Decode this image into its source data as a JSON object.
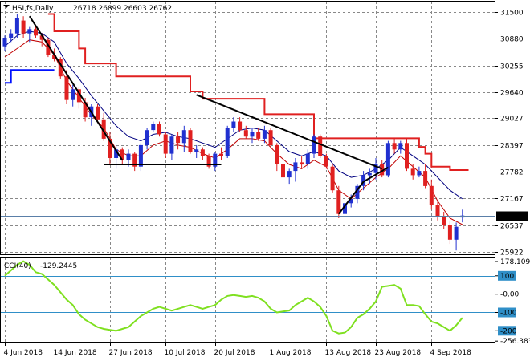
{
  "header": {
    "symbol": "HSI,fs,Daily",
    "ohlc": "26718 26899 26603 26762"
  },
  "cci_header": {
    "label": "CCI(40)",
    "value": "-129.2445"
  },
  "current_price_label": "26762",
  "colors": {
    "bull": "#2030d0",
    "bear": "#e02020",
    "upper_band": "#e02020",
    "lower_band": "#0010ff",
    "ma_fast": "#c00000",
    "ma_slow": "#000080",
    "cci": "#7fe020",
    "level_line": "#2f8fc8",
    "trendline": "#000000"
  },
  "chart_data": [
    {
      "type": "candlestick",
      "title": "HSI,fs,Daily",
      "ylim": [
        25860,
        31740
      ],
      "y_ticks": [
        "31500",
        "30880",
        "30255",
        "29640",
        "29027",
        "28397",
        "27782",
        "27167",
        "26537",
        "25922"
      ],
      "x_labels": [
        "4 Jun 2018",
        "14 Jun 2018",
        "27 Jun 2018",
        "10 Jul 2018",
        "20 Jul 2018",
        "1 Aug 2018",
        "13 Aug 2018",
        "23 Aug 2018",
        "4 Sep 2018"
      ],
      "x_label_index": [
        0,
        8,
        17,
        26,
        34,
        43,
        52,
        60,
        69
      ],
      "candles": [
        [
          30700,
          30950,
          30600,
          30900
        ],
        [
          30900,
          31100,
          30800,
          31000
        ],
        [
          31000,
          31450,
          30900,
          31350
        ],
        [
          31300,
          31400,
          30900,
          31000
        ],
        [
          31000,
          31150,
          30800,
          31100
        ],
        [
          31100,
          31200,
          30900,
          30950
        ],
        [
          30950,
          31000,
          30700,
          30850
        ],
        [
          30850,
          30900,
          30450,
          30500
        ],
        [
          30500,
          30650,
          30350,
          30400
        ],
        [
          30400,
          30450,
          29950,
          30000
        ],
        [
          30000,
          30150,
          29350,
          29450
        ],
        [
          29450,
          29800,
          29300,
          29700
        ],
        [
          29700,
          29750,
          29250,
          29400
        ],
        [
          29400,
          29500,
          28950,
          29050
        ],
        [
          29050,
          29350,
          28850,
          29300
        ],
        [
          29300,
          29350,
          28950,
          29000
        ],
        [
          29000,
          29150,
          28500,
          28550
        ],
        [
          28550,
          28700,
          27950,
          28100
        ],
        [
          28100,
          28400,
          27850,
          28300
        ],
        [
          28300,
          28350,
          27950,
          28050
        ],
        [
          28050,
          28300,
          27900,
          28200
        ],
        [
          28200,
          28250,
          27800,
          27900
        ],
        [
          27900,
          28450,
          27800,
          28400
        ],
        [
          28400,
          28800,
          28300,
          28750
        ],
        [
          28750,
          28950,
          28700,
          28900
        ],
        [
          28900,
          28950,
          28600,
          28650
        ],
        [
          28650,
          28700,
          28100,
          28200
        ],
        [
          28200,
          28650,
          28050,
          28600
        ],
        [
          28600,
          28700,
          28300,
          28450
        ],
        [
          28450,
          28850,
          28250,
          28750
        ],
        [
          28750,
          28800,
          28200,
          28250
        ],
        [
          28250,
          28400,
          28100,
          28300
        ],
        [
          28300,
          28350,
          28050,
          28150
        ],
        [
          28150,
          28200,
          27850,
          27900
        ],
        [
          27900,
          28250,
          27800,
          28200
        ],
        [
          28200,
          28350,
          28050,
          28150
        ],
        [
          28150,
          28850,
          28100,
          28800
        ],
        [
          28800,
          29050,
          28700,
          28950
        ],
        [
          28950,
          29050,
          28700,
          28750
        ],
        [
          28750,
          28850,
          28550,
          28600
        ],
        [
          28600,
          28800,
          28450,
          28700
        ],
        [
          28700,
          28800,
          28500,
          28550
        ],
        [
          28550,
          28850,
          28450,
          28750
        ],
        [
          28750,
          28800,
          28350,
          28400
        ],
        [
          28400,
          28450,
          27800,
          27950
        ],
        [
          27950,
          28100,
          27400,
          27650
        ],
        [
          27650,
          27850,
          27500,
          27800
        ],
        [
          27800,
          28100,
          27550,
          28000
        ],
        [
          28000,
          28150,
          27850,
          27950
        ],
        [
          27950,
          28300,
          27850,
          28200
        ],
        [
          28200,
          28650,
          28100,
          28600
        ],
        [
          28600,
          28650,
          28100,
          28150
        ],
        [
          28150,
          28200,
          27850,
          27900
        ],
        [
          27900,
          27950,
          27300,
          27350
        ],
        [
          27350,
          27450,
          26700,
          26800
        ],
        [
          26800,
          27200,
          26750,
          27050
        ],
        [
          27050,
          27250,
          26950,
          27150
        ],
        [
          27150,
          27500,
          27050,
          27450
        ],
        [
          27450,
          27800,
          27350,
          27700
        ],
        [
          27700,
          27850,
          27500,
          27750
        ],
        [
          27750,
          28100,
          27600,
          27950
        ],
        [
          27950,
          28050,
          27650,
          27700
        ],
        [
          27700,
          28500,
          27650,
          28450
        ],
        [
          28450,
          28550,
          28200,
          28300
        ],
        [
          28300,
          28500,
          28200,
          28450
        ],
        [
          28450,
          28550,
          27800,
          27850
        ],
        [
          27850,
          27950,
          27600,
          27700
        ],
        [
          27700,
          27900,
          27650,
          27800
        ],
        [
          27800,
          27950,
          27400,
          27450
        ],
        [
          27450,
          27600,
          26900,
          27000
        ],
        [
          27000,
          27100,
          26650,
          26750
        ],
        [
          26750,
          26850,
          26450,
          26550
        ],
        [
          26550,
          26650,
          26100,
          26200
        ],
        [
          26200,
          26600,
          25950,
          26500
        ],
        [
          26718,
          26899,
          26603,
          26762
        ]
      ],
      "upper_band": [
        [
          7,
          31450
        ],
        [
          8,
          31050
        ],
        [
          11,
          31050
        ],
        [
          12,
          30650
        ],
        [
          13,
          30300
        ],
        [
          17,
          30300
        ],
        [
          18,
          30000
        ],
        [
          29,
          30000
        ],
        [
          30,
          29650
        ],
        [
          31,
          29650
        ],
        [
          32,
          29480
        ],
        [
          41,
          29480
        ],
        [
          42,
          29120
        ],
        [
          49,
          29120
        ],
        [
          50,
          28560
        ],
        [
          66,
          28560
        ],
        [
          67,
          28360
        ],
        [
          68,
          28200
        ],
        [
          69,
          27900
        ],
        [
          72,
          27820
        ],
        [
          75,
          27820
        ]
      ],
      "lower_band": [
        [
          0,
          29850
        ],
        [
          1,
          29850
        ],
        [
          1,
          30150
        ],
        [
          8,
          30150
        ]
      ],
      "ma_fast": [
        [
          0,
          30450
        ],
        [
          2,
          30650
        ],
        [
          4,
          30850
        ],
        [
          6,
          30800
        ],
        [
          8,
          30500
        ],
        [
          10,
          29900
        ],
        [
          12,
          29500
        ],
        [
          14,
          29100
        ],
        [
          16,
          28800
        ],
        [
          18,
          28300
        ],
        [
          20,
          28150
        ],
        [
          22,
          28150
        ],
        [
          24,
          28400
        ],
        [
          26,
          28500
        ],
        [
          28,
          28400
        ],
        [
          30,
          28350
        ],
        [
          32,
          28200
        ],
        [
          34,
          28100
        ],
        [
          36,
          28300
        ],
        [
          38,
          28550
        ],
        [
          40,
          28550
        ],
        [
          42,
          28500
        ],
        [
          44,
          28200
        ],
        [
          46,
          27950
        ],
        [
          48,
          27850
        ],
        [
          50,
          28050
        ],
        [
          52,
          27900
        ],
        [
          54,
          27350
        ],
        [
          56,
          27150
        ],
        [
          58,
          27400
        ],
        [
          60,
          27650
        ],
        [
          62,
          27850
        ],
        [
          64,
          28150
        ],
        [
          66,
          27900
        ],
        [
          68,
          27650
        ],
        [
          70,
          27100
        ],
        [
          72,
          26700
        ],
        [
          74,
          26550
        ]
      ],
      "ma_slow": [
        [
          0,
          30700
        ],
        [
          2,
          30950
        ],
        [
          4,
          31050
        ],
        [
          6,
          31000
        ],
        [
          8,
          30800
        ],
        [
          10,
          30300
        ],
        [
          12,
          29950
        ],
        [
          14,
          29550
        ],
        [
          16,
          29200
        ],
        [
          18,
          28850
        ],
        [
          20,
          28600
        ],
        [
          22,
          28500
        ],
        [
          24,
          28650
        ],
        [
          26,
          28700
        ],
        [
          28,
          28600
        ],
        [
          30,
          28550
        ],
        [
          32,
          28450
        ],
        [
          34,
          28350
        ],
        [
          36,
          28550
        ],
        [
          38,
          28750
        ],
        [
          40,
          28800
        ],
        [
          42,
          28750
        ],
        [
          44,
          28500
        ],
        [
          46,
          28250
        ],
        [
          48,
          28150
        ],
        [
          50,
          28250
        ],
        [
          52,
          28150
        ],
        [
          54,
          27800
        ],
        [
          56,
          27650
        ],
        [
          58,
          27700
        ],
        [
          60,
          27850
        ],
        [
          62,
          28050
        ],
        [
          64,
          28350
        ],
        [
          66,
          28150
        ],
        [
          68,
          27950
        ],
        [
          70,
          27650
        ],
        [
          72,
          27350
        ],
        [
          74,
          27150
        ]
      ],
      "trendlines": [
        [
          [
            4,
            31400
          ],
          [
            19,
            28050
          ]
        ],
        [
          [
            16,
            27950
          ],
          [
            35,
            27950
          ]
        ],
        [
          [
            31,
            29570
          ],
          [
            61,
            27850
          ]
        ],
        [
          [
            54,
            26800
          ],
          [
            58,
            27550
          ]
        ],
        [
          [
            58,
            27550
          ],
          [
            62,
            27880
          ]
        ]
      ]
    },
    {
      "type": "line",
      "title": "CCI(40) -129.2445",
      "ylim": [
        -260,
        200
      ],
      "y_ticks": [
        "178.1096",
        "100",
        "-0.00",
        "-100",
        "-200",
        "-256.383"
      ],
      "levels": [
        100,
        -100,
        -200
      ],
      "values": [
        100,
        130,
        160,
        180,
        160,
        120,
        110,
        80,
        50,
        10,
        -30,
        -60,
        -110,
        -140,
        -160,
        -180,
        -190,
        -195,
        -200,
        -190,
        -180,
        -150,
        -120,
        -100,
        -80,
        -70,
        -80,
        -90,
        -80,
        -70,
        -60,
        -70,
        -80,
        -70,
        -60,
        -30,
        -10,
        -5,
        -10,
        -15,
        -10,
        -20,
        -40,
        -80,
        -100,
        -95,
        -90,
        -60,
        -40,
        -20,
        -40,
        -70,
        -120,
        -200,
        -215,
        -210,
        -180,
        -130,
        -110,
        -80,
        -40,
        40,
        45,
        50,
        30,
        -60,
        -60,
        -65,
        -110,
        -150,
        -160,
        -180,
        -200,
        -170,
        -129
      ]
    }
  ]
}
